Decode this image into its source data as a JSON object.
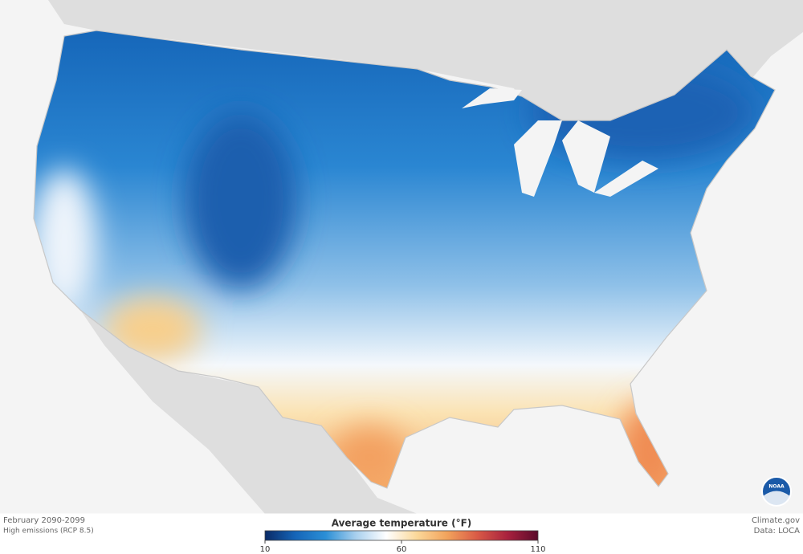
{
  "map": {
    "caption": "February 2090-2099",
    "scenario": "High emissions (RCP 8.5)",
    "credit": "Climate.gov",
    "source": "Data: LOCA",
    "logo": "NOAA"
  },
  "legend": {
    "title": "Average temperature (°F)",
    "range": [
      10,
      110
    ],
    "ticks": [
      10,
      60,
      110
    ],
    "colors": [
      "#0a2a66",
      "#1565b8",
      "#2b8fd6",
      "#a9d0ee",
      "#ffffff",
      "#fbd89a",
      "#f2a35c",
      "#d95a46",
      "#a8213e",
      "#5a0a2a"
    ]
  }
}
